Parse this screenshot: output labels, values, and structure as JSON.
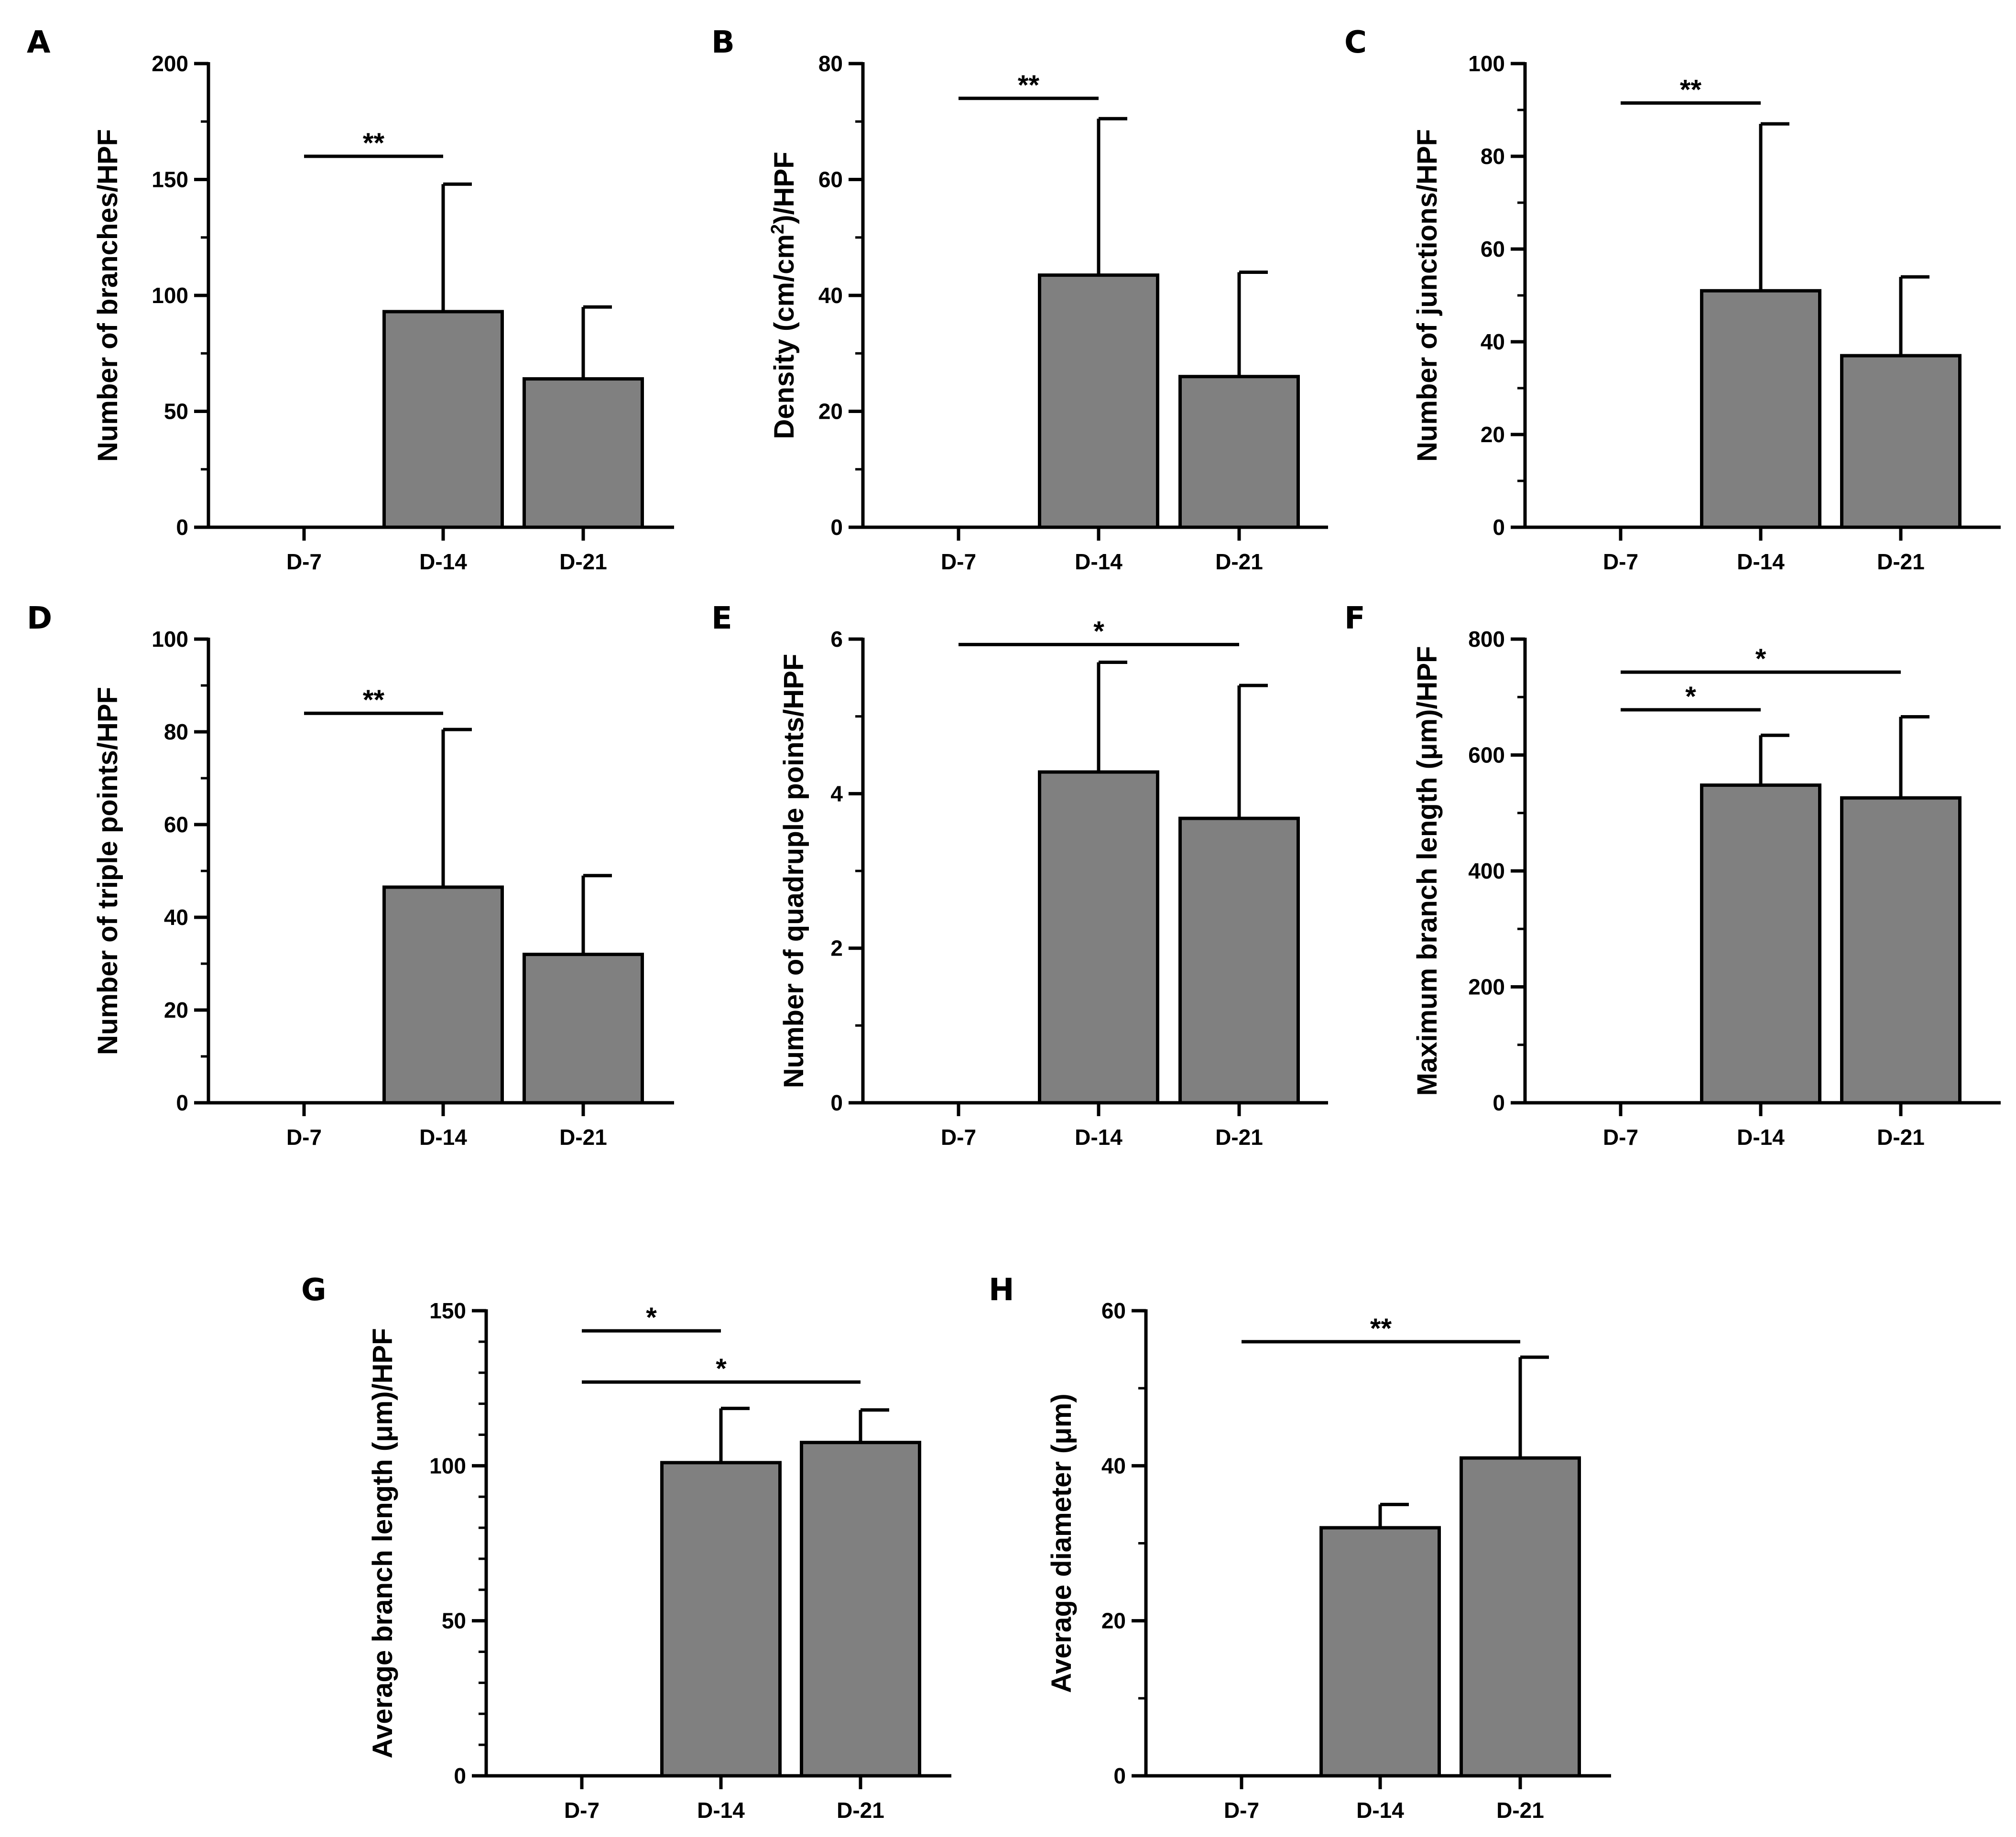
{
  "chart_data": [
    {
      "panel": "A",
      "type": "bar",
      "categories": [
        "D-7",
        "D-14",
        "D-21"
      ],
      "values": [
        0,
        93,
        64
      ],
      "error": [
        0,
        55,
        31
      ],
      "ylabel": "Number of branches/HPF",
      "ylim": [
        0,
        200
      ],
      "yticks": [
        0,
        50,
        100,
        150,
        200
      ],
      "minor_ticks": 1,
      "significance": [
        {
          "from": 0,
          "to": 1,
          "y": 160,
          "label": "**"
        }
      ]
    },
    {
      "panel": "B",
      "type": "bar",
      "categories": [
        "D-7",
        "D-14",
        "D-21"
      ],
      "values": [
        0,
        43.5,
        26
      ],
      "error": [
        0,
        27,
        18
      ],
      "ylabel": "Density (cm/cm²)/HPF",
      "ylabel_parts": [
        "Density (cm/cm",
        "2",
        ")/HPF"
      ],
      "ylim": [
        0,
        80
      ],
      "yticks": [
        0,
        20,
        40,
        60,
        80
      ],
      "minor_ticks": 1,
      "significance": [
        {
          "from": 0,
          "to": 1,
          "y": 74,
          "label": "**"
        }
      ]
    },
    {
      "panel": "C",
      "type": "bar",
      "categories": [
        "D-7",
        "D-14",
        "D-21"
      ],
      "values": [
        0,
        51,
        37
      ],
      "error": [
        0,
        36,
        17
      ],
      "ylabel": "Number of junctions/HPF",
      "ylim": [
        0,
        100
      ],
      "yticks": [
        0,
        20,
        40,
        60,
        80,
        100
      ],
      "minor_ticks": 1,
      "significance": [
        {
          "from": 0,
          "to": 1,
          "y": 91.5,
          "label": "**"
        }
      ]
    },
    {
      "panel": "D",
      "type": "bar",
      "categories": [
        "D-7",
        "D-14",
        "D-21"
      ],
      "values": [
        0,
        46.5,
        32
      ],
      "error": [
        0,
        34,
        17
      ],
      "ylabel": "Number of triple points/HPF",
      "ylim": [
        0,
        100
      ],
      "yticks": [
        0,
        20,
        40,
        60,
        80,
        100
      ],
      "minor_ticks": 1,
      "significance": [
        {
          "from": 0,
          "to": 1,
          "y": 84,
          "label": "**"
        }
      ]
    },
    {
      "panel": "E",
      "type": "bar",
      "categories": [
        "D-7",
        "D-14",
        "D-21"
      ],
      "values": [
        0,
        4.28,
        3.68
      ],
      "error": [
        0,
        1.42,
        1.72
      ],
      "ylabel": "Number of quadruple points/HPF",
      "ylim": [
        0,
        6
      ],
      "yticks": [
        0,
        2,
        4,
        6
      ],
      "minor_ticks": 1,
      "significance": [
        {
          "from": 0,
          "to": 2,
          "y": 5.93,
          "label": "*"
        }
      ]
    },
    {
      "panel": "F",
      "type": "bar",
      "categories": [
        "D-7",
        "D-14",
        "D-21"
      ],
      "values": [
        0,
        548,
        526
      ],
      "error": [
        0,
        86,
        140
      ],
      "ylabel": "Maximum branch length (μm)/HPF",
      "ylim": [
        0,
        800
      ],
      "yticks": [
        0,
        200,
        400,
        600,
        800
      ],
      "minor_ticks": 1,
      "significance": [
        {
          "from": 0,
          "to": 1,
          "y": 678,
          "label": "*"
        },
        {
          "from": 0,
          "to": 2,
          "y": 743,
          "label": "*"
        }
      ]
    },
    {
      "panel": "G",
      "type": "bar",
      "categories": [
        "D-7",
        "D-14",
        "D-21"
      ],
      "values": [
        0,
        101,
        107.5
      ],
      "error": [
        0,
        17.5,
        10.5
      ],
      "ylabel": "Average branch length (μm)/HPF",
      "ylim": [
        0,
        150
      ],
      "yticks": [
        0,
        50,
        100,
        150
      ],
      "minor_ticks": 4,
      "significance": [
        {
          "from": 0,
          "to": 1,
          "y": 143.5,
          "label": "*"
        },
        {
          "from": 0,
          "to": 2,
          "y": 127,
          "label": "*"
        }
      ]
    },
    {
      "panel": "H",
      "type": "bar",
      "categories": [
        "D-7",
        "D-14",
        "D-21"
      ],
      "values": [
        0,
        32,
        41
      ],
      "error": [
        0,
        3,
        13
      ],
      "ylabel": "Average diameter (μm)",
      "ylim": [
        0,
        60
      ],
      "yticks": [
        0,
        20,
        40,
        60
      ],
      "minor_ticks": 1,
      "significance": [
        {
          "from": 0,
          "to": 2,
          "y": 56,
          "label": "**"
        }
      ]
    }
  ],
  "colors": {
    "bar_fill": "#808080",
    "stroke": "#000000",
    "background": "#ffffff"
  }
}
